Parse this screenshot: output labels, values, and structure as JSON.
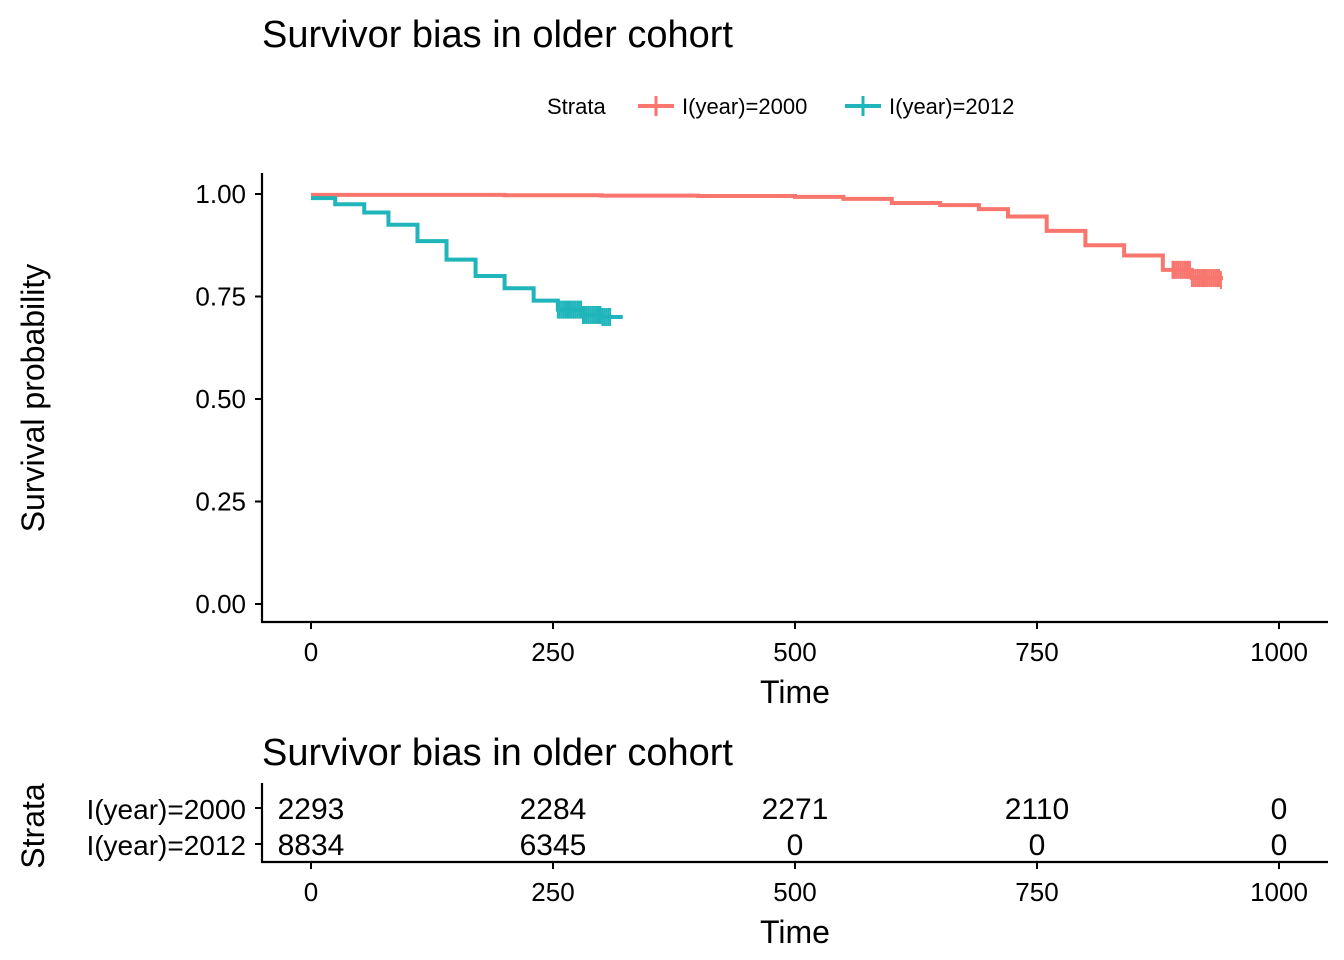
{
  "colors": {
    "stratum_2000": "#F8766D",
    "stratum_2012": "#1FB5BA"
  },
  "chart_data": [
    {
      "type": "line",
      "subtype": "kaplan-meier",
      "title": "Survivor bias in older cohort",
      "xlabel": "Time",
      "ylabel": "Survival probability",
      "xlim": [
        -100,
        1050
      ],
      "ylim": [
        -0.05,
        1.05
      ],
      "x_ticks": [
        "0",
        "250",
        "500",
        "750",
        "1000"
      ],
      "y_ticks": [
        "0.00",
        "0.25",
        "0.50",
        "0.75",
        "1.00"
      ],
      "grid": false,
      "legend": {
        "title": "Strata",
        "position": "top",
        "entries": [
          "I(year)=2000",
          "I(year)=2012"
        ]
      },
      "series": [
        {
          "name": "I(year)=2000",
          "color_key": "stratum_2000",
          "x": [
            0,
            100,
            200,
            300,
            400,
            500,
            550,
            600,
            650,
            690,
            720,
            760,
            800,
            840,
            880,
            910,
            940
          ],
          "y": [
            0.998,
            0.998,
            0.997,
            0.996,
            0.995,
            0.993,
            0.988,
            0.978,
            0.973,
            0.963,
            0.945,
            0.91,
            0.875,
            0.85,
            0.815,
            0.795,
            0.79
          ],
          "censor_range": [
            890,
            940
          ]
        },
        {
          "name": "I(year)=2012",
          "color_key": "stratum_2012",
          "x": [
            0,
            25,
            55,
            80,
            110,
            140,
            170,
            200,
            230,
            255,
            280,
            300,
            320
          ],
          "y": [
            0.99,
            0.975,
            0.955,
            0.925,
            0.885,
            0.84,
            0.8,
            0.77,
            0.74,
            0.718,
            0.705,
            0.7,
            0.695
          ],
          "censor_range": [
            255,
            310
          ]
        }
      ]
    },
    {
      "type": "table",
      "title": "Survivor bias in older cohort",
      "xlabel": "Time",
      "ylabel": "Strata",
      "x_ticks": [
        "0",
        "250",
        "500",
        "750",
        "1000"
      ],
      "columns": [
        0,
        250,
        500,
        750,
        1000
      ],
      "rows": [
        {
          "label": "I(year)=2000",
          "color_key": "stratum_2000",
          "values": [
            "2293",
            "2284",
            "2271",
            "2110",
            "0"
          ]
        },
        {
          "label": "I(year)=2012",
          "color_key": "stratum_2012",
          "values": [
            "8834",
            "6345",
            "0",
            "0",
            "0"
          ]
        }
      ]
    }
  ]
}
